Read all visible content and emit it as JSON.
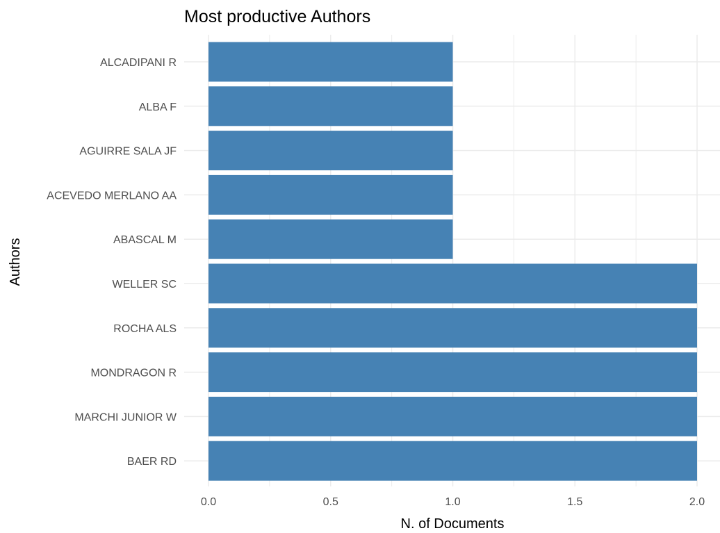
{
  "chart_data": {
    "type": "bar",
    "orientation": "horizontal",
    "title": "Most productive Authors",
    "xlabel": "N. of Documents",
    "ylabel": "Authors",
    "categories": [
      "ALCADIPANI R",
      "ALBA F",
      "AGUIRRE SALA JF",
      "ACEVEDO MERLANO AA",
      "ABASCAL M",
      "WELLER SC",
      "ROCHA ALS",
      "MONDRAGON R",
      "MARCHI JUNIOR W",
      "BAER RD"
    ],
    "values": [
      1,
      1,
      1,
      1,
      1,
      2,
      2,
      2,
      2,
      2
    ],
    "xlim": [
      0,
      2
    ],
    "xticks": [
      0.0,
      0.5,
      1.0,
      1.5,
      2.0
    ],
    "xtick_labels": [
      "0.0",
      "0.5",
      "1.0",
      "1.5",
      "2.0"
    ],
    "bar_color": "#4682B4",
    "grid": true,
    "grid_color": "#EBEBEB",
    "legend": "none"
  }
}
